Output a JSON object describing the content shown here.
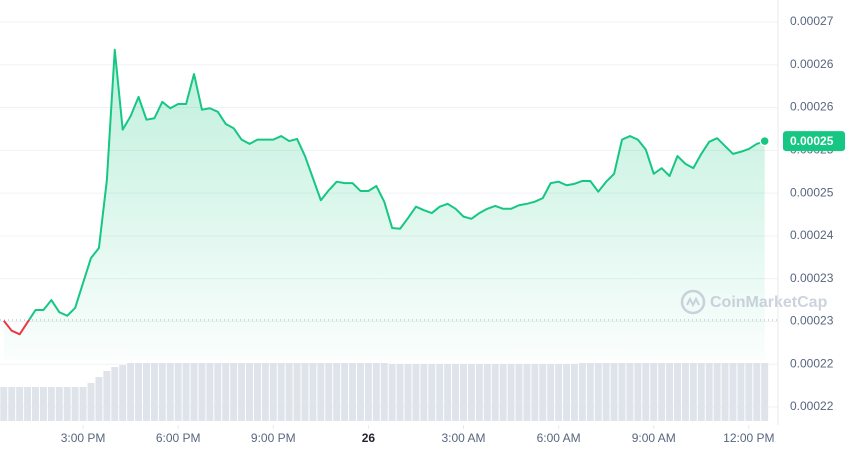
{
  "chart_data": {
    "type": "line",
    "x": [
      12.5,
      12.75,
      13,
      13.25,
      13.5,
      13.75,
      14,
      14.25,
      14.5,
      14.75,
      15,
      15.25,
      15.5,
      15.75,
      16,
      16.25,
      16.5,
      16.75,
      17,
      17.25,
      17.5,
      17.75,
      18,
      18.25,
      18.5,
      18.75,
      19,
      19.25,
      19.5,
      19.75,
      20,
      20.25,
      20.5,
      20.75,
      21,
      21.25,
      21.5,
      21.75,
      22,
      22.25,
      22.5,
      22.75,
      23,
      23.25,
      23.5,
      23.75,
      24,
      24.25,
      24.5,
      24.75,
      25,
      25.25,
      25.5,
      25.75,
      26,
      26.25,
      26.5,
      26.75,
      27,
      27.25,
      27.5,
      27.75,
      28,
      28.25,
      28.5,
      28.75,
      29,
      29.25,
      29.5,
      29.75,
      30,
      30.25,
      30.5,
      30.75,
      31,
      31.25,
      31.5,
      31.75,
      32,
      32.25,
      32.5,
      32.75,
      33,
      33.25,
      33.5,
      33.75,
      34,
      34.25,
      34.5,
      34.75,
      35,
      35.25,
      35.5,
      35.75,
      36,
      36.25,
      36.5
    ],
    "values": [
      0.0002281,
      0.0002267,
      0.0002262,
      0.0002279,
      0.0002296,
      0.0002296,
      0.000231,
      0.0002293,
      0.0002288,
      0.0002299,
      0.0002334,
      0.0002369,
      0.0002383,
      0.0002478,
      0.0002661,
      0.0002549,
      0.0002568,
      0.0002595,
      0.0002563,
      0.0002565,
      0.0002588,
      0.0002579,
      0.0002585,
      0.0002585,
      0.0002627,
      0.0002577,
      0.0002579,
      0.0002574,
      0.0002557,
      0.0002551,
      0.0002535,
      0.0002529,
      0.0002535,
      0.0002535,
      0.0002535,
      0.000254,
      0.0002533,
      0.0002536,
      0.0002512,
      0.0002481,
      0.000245,
      0.0002464,
      0.0002476,
      0.0002474,
      0.0002474,
      0.0002463,
      0.0002463,
      0.000247,
      0.0002448,
      0.0002411,
      0.000241,
      0.0002425,
      0.0002441,
      0.0002436,
      0.0002432,
      0.0002441,
      0.0002445,
      0.0002438,
      0.0002427,
      0.0002424,
      0.0002432,
      0.0002438,
      0.0002442,
      0.0002438,
      0.0002438,
      0.0002443,
      0.0002445,
      0.0002448,
      0.0002453,
      0.0002474,
      0.0002476,
      0.0002471,
      0.0002473,
      0.0002477,
      0.0002477,
      0.0002462,
      0.0002476,
      0.0002487,
      0.0002535,
      0.000254,
      0.0002535,
      0.0002521,
      0.0002487,
      0.0002495,
      0.0002484,
      0.0002512,
      0.0002501,
      0.0002495,
      0.0002515,
      0.0002532,
      0.0002537,
      0.0002526,
      0.0002515,
      0.0002518,
      0.0002522,
      0.0002529,
      0.0002533
    ],
    "color": "#16c784",
    "down_color": "#ea3943",
    "baseline": 0.0002282,
    "price_label": "0.00025",
    "volume": [
      34,
      34,
      34,
      34,
      34,
      34,
      34,
      34,
      34,
      34,
      34,
      38,
      44,
      50,
      54,
      56,
      58,
      58,
      58,
      58,
      58,
      58,
      58,
      58,
      58,
      58,
      58,
      58,
      58,
      58,
      58,
      58,
      58,
      58,
      58,
      58,
      58,
      58,
      58,
      58,
      58,
      58,
      58,
      58,
      58,
      58,
      58,
      58,
      58,
      57,
      57,
      57,
      57,
      57,
      57,
      57,
      57,
      57,
      57,
      57,
      57,
      57,
      57,
      57,
      57,
      57,
      57,
      57,
      57,
      57,
      57,
      57,
      57,
      58,
      58,
      58,
      58,
      58,
      58,
      58,
      58,
      58,
      58,
      58,
      58,
      58,
      58,
      58,
      58,
      58,
      58,
      58,
      58,
      58,
      58,
      58,
      58
    ],
    "volume_lim": [
      0,
      100
    ],
    "volume_color": "#dfe3ea",
    "watermark": "CoinMarketCap",
    "xlim": [
      12.38,
      36.92
    ],
    "xticks": [
      {
        "value": 15,
        "label": "3:00 PM"
      },
      {
        "value": 18,
        "label": "6:00 PM"
      },
      {
        "value": 21,
        "label": "9:00 PM"
      },
      {
        "value": 24,
        "label": "26"
      },
      {
        "value": 27,
        "label": "3:00 AM"
      },
      {
        "value": 30,
        "label": "6:00 AM"
      },
      {
        "value": 33,
        "label": "9:00 AM"
      },
      {
        "value": 36,
        "label": "12:00 PM"
      }
    ],
    "ylim": [
      0.000216,
      0.00027
    ],
    "yticks": [
      {
        "value": 0.000216,
        "label": "0.00022"
      },
      {
        "value": 0.000222,
        "label": "0.00022"
      },
      {
        "value": 0.000228,
        "label": "0.00023"
      },
      {
        "value": 0.000234,
        "label": "0.00023"
      },
      {
        "value": 0.00024,
        "label": "0.00024"
      },
      {
        "value": 0.000246,
        "label": "0.00025"
      },
      {
        "value": 0.000252,
        "label": "0.00025"
      },
      {
        "value": 0.000258,
        "label": "0.00026"
      },
      {
        "value": 0.000264,
        "label": "0.00026"
      },
      {
        "value": 0.00027,
        "label": "0.00027"
      }
    ],
    "grid": true
  }
}
